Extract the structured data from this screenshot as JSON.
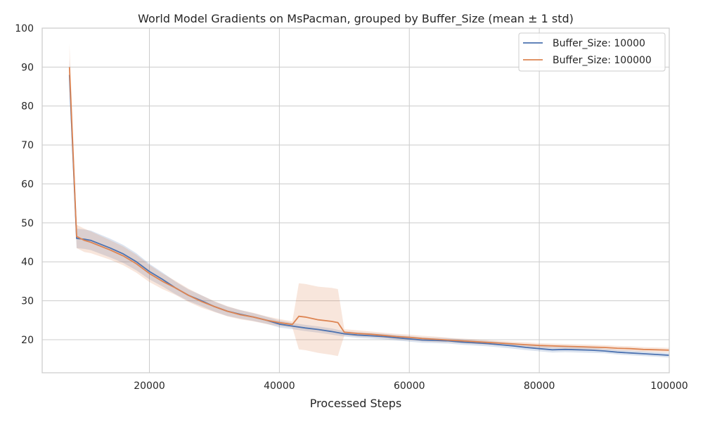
{
  "chart_data": {
    "type": "line",
    "title": "World Model Gradients on MsPacman, grouped by Buffer_Size (mean ± 1 std)",
    "xlabel": "Processed Steps",
    "ylabel": "",
    "xlim": [
      3500,
      100000
    ],
    "ylim": [
      11.5,
      100
    ],
    "xticks": [
      20000,
      40000,
      60000,
      80000,
      100000
    ],
    "xtick_labels": [
      "20000",
      "40000",
      "60000",
      "80000",
      "100000"
    ],
    "yticks": [
      20,
      30,
      40,
      50,
      60,
      70,
      80,
      90,
      100
    ],
    "ytick_labels": [
      "20",
      "30",
      "40",
      "50",
      "60",
      "70",
      "80",
      "90",
      "100"
    ],
    "grid": true,
    "legend_position": "top-right",
    "colors": {
      "grid": "#cccccc",
      "axes": "#cccccc"
    },
    "series": [
      {
        "name": "Buffer_Size: 10000",
        "color": "#4c72b0",
        "x": [
          7700,
          8800,
          10000,
          11000,
          14000,
          16000,
          18000,
          20000,
          22000,
          24000,
          26000,
          28000,
          30000,
          32000,
          34000,
          36000,
          38000,
          40000,
          42000,
          44000,
          46000,
          48000,
          50000,
          52000,
          54000,
          56000,
          58000,
          60000,
          62000,
          64000,
          66000,
          68000,
          70000,
          72000,
          74000,
          76000,
          78000,
          80000,
          82000,
          84000,
          86000,
          88000,
          90000,
          92000,
          94000,
          96000,
          98000,
          100000
        ],
        "y": [
          88,
          46,
          45.8,
          45.5,
          43.5,
          42,
          40,
          37.5,
          35.5,
          33.3,
          31.4,
          30,
          28.5,
          27.3,
          26.5,
          25.8,
          25,
          24,
          23.5,
          23,
          22.6,
          22.1,
          21.5,
          21.2,
          21,
          20.8,
          20.5,
          20.2,
          19.9,
          19.8,
          19.7,
          19.4,
          19.2,
          19,
          18.7,
          18.4,
          18,
          17.7,
          17.4,
          17.5,
          17.4,
          17.3,
          17.1,
          16.8,
          16.6,
          16.4,
          16.2,
          16
        ],
        "std": [
          4,
          2.5,
          2.5,
          2.5,
          2.4,
          2.3,
          2.2,
          2,
          1.8,
          1.6,
          1.5,
          1.4,
          1.3,
          1.2,
          1.1,
          1,
          0.9,
          0.9,
          0.8,
          0.8,
          0.8,
          0.8,
          0.7,
          0.7,
          0.7,
          0.7,
          0.7,
          0.7,
          0.7,
          0.7,
          0.7,
          0.7,
          0.7,
          0.7,
          0.7,
          0.7,
          0.7,
          0.7,
          0.7,
          0.7,
          0.7,
          0.7,
          0.6,
          0.6,
          0.6,
          0.6,
          0.6,
          0.6
        ]
      },
      {
        "name": "Buffer_Size: 100000",
        "color": "#dd8452",
        "x": [
          7700,
          8800,
          10000,
          11000,
          14000,
          16000,
          18000,
          20000,
          22000,
          24000,
          26000,
          28000,
          30000,
          32000,
          34000,
          36000,
          38000,
          40000,
          42000,
          43000,
          44000,
          46000,
          48000,
          49000,
          50000,
          52000,
          54000,
          56000,
          58000,
          60000,
          62000,
          64000,
          66000,
          68000,
          70000,
          72000,
          74000,
          76000,
          78000,
          80000,
          82000,
          84000,
          86000,
          88000,
          90000,
          92000,
          94000,
          96000,
          98000,
          100000
        ],
        "y": [
          90,
          46.5,
          45.5,
          45,
          43,
          41.5,
          39.5,
          37,
          35,
          33.3,
          31.4,
          29.8,
          28.5,
          27.3,
          26.4,
          25.8,
          25,
          24.4,
          23.9,
          26,
          25.8,
          25.1,
          24.7,
          24.4,
          21.9,
          21.6,
          21.4,
          21.1,
          20.8,
          20.6,
          20.3,
          20.1,
          19.9,
          19.7,
          19.5,
          19.3,
          19.1,
          18.9,
          18.7,
          18.5,
          18.4,
          18.3,
          18.2,
          18.1,
          18,
          17.8,
          17.7,
          17.5,
          17.4,
          17.3
        ],
        "std": [
          6,
          3,
          3,
          2.8,
          2.5,
          2.4,
          2.3,
          2.2,
          2,
          1.8,
          1.7,
          1.6,
          1.4,
          1.3,
          1.2,
          1.1,
          1,
          0.9,
          0.8,
          8.5,
          8.5,
          8.5,
          8.6,
          8.6,
          0.8,
          0.8,
          0.7,
          0.7,
          0.7,
          0.7,
          0.7,
          0.7,
          0.6,
          0.6,
          0.6,
          0.6,
          0.6,
          0.6,
          0.6,
          0.6,
          0.6,
          0.6,
          0.6,
          0.6,
          0.6,
          0.6,
          0.6,
          0.6,
          0.6,
          0.6
        ]
      }
    ]
  }
}
